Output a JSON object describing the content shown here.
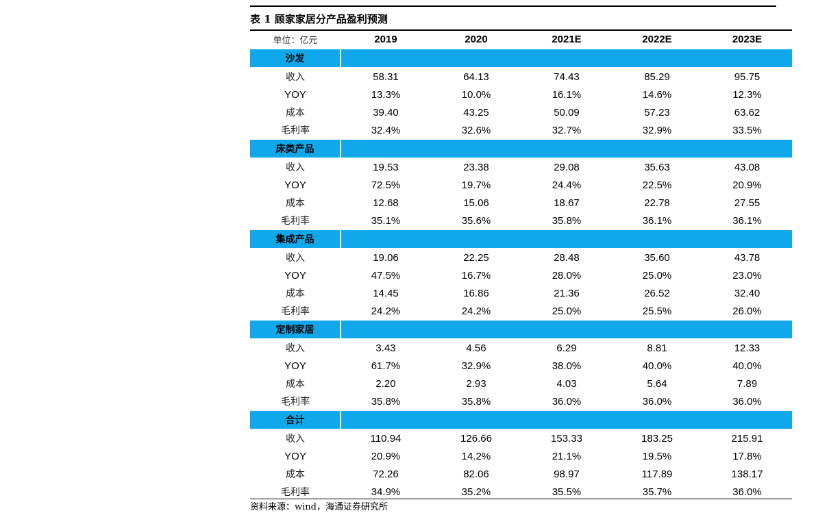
{
  "title": "表 1 顾家家居分产品盈利预测",
  "unit_label": "单位：亿元",
  "years": [
    "2019",
    "2020",
    "2021E",
    "2022E",
    "2023E"
  ],
  "sections": [
    {
      "name": "沙发",
      "rows": [
        {
          "label": "收入",
          "values": [
            "58.31",
            "64.13",
            "74.43",
            "85.29",
            "95.75"
          ]
        },
        {
          "label": "YOY",
          "values": [
            "13.3%",
            "10.0%",
            "16.1%",
            "14.6%",
            "12.3%"
          ]
        },
        {
          "label": "成本",
          "values": [
            "39.40",
            "43.25",
            "50.09",
            "57.23",
            "63.62"
          ]
        },
        {
          "label": "毛利率",
          "values": [
            "32.4%",
            "32.6%",
            "32.7%",
            "32.9%",
            "33.5%"
          ]
        }
      ]
    },
    {
      "name": "床类产品",
      "rows": [
        {
          "label": "收入",
          "values": [
            "19.53",
            "23.38",
            "29.08",
            "35.63",
            "43.08"
          ]
        },
        {
          "label": "YOY",
          "values": [
            "72.5%",
            "19.7%",
            "24.4%",
            "22.5%",
            "20.9%"
          ]
        },
        {
          "label": "成本",
          "values": [
            "12.68",
            "15.06",
            "18.67",
            "22.78",
            "27.55"
          ]
        },
        {
          "label": "毛利率",
          "values": [
            "35.1%",
            "35.6%",
            "35.8%",
            "36.1%",
            "36.1%"
          ]
        }
      ]
    },
    {
      "name": "集成产品",
      "rows": [
        {
          "label": "收入",
          "values": [
            "19.06",
            "22.25",
            "28.48",
            "35.60",
            "43.78"
          ]
        },
        {
          "label": "YOY",
          "values": [
            "47.5%",
            "16.7%",
            "28.0%",
            "25.0%",
            "23.0%"
          ]
        },
        {
          "label": "成本",
          "values": [
            "14.45",
            "16.86",
            "21.36",
            "26.52",
            "32.40"
          ]
        },
        {
          "label": "毛利率",
          "values": [
            "24.2%",
            "24.2%",
            "25.0%",
            "25.5%",
            "26.0%"
          ]
        }
      ]
    },
    {
      "name": "定制家居",
      "rows": [
        {
          "label": "收入",
          "values": [
            "3.43",
            "4.56",
            "6.29",
            "8.81",
            "12.33"
          ]
        },
        {
          "label": "YOY",
          "values": [
            "61.7%",
            "32.9%",
            "38.0%",
            "40.0%",
            "40.0%"
          ]
        },
        {
          "label": "成本",
          "values": [
            "2.20",
            "2.93",
            "4.03",
            "5.64",
            "7.89"
          ]
        },
        {
          "label": "毛利率",
          "values": [
            "35.8%",
            "35.8%",
            "36.0%",
            "36.0%",
            "36.0%"
          ]
        }
      ]
    },
    {
      "name": "合计",
      "rows": [
        {
          "label": "收入",
          "values": [
            "110.94",
            "126.66",
            "153.33",
            "183.25",
            "215.91"
          ]
        },
        {
          "label": "YOY",
          "values": [
            "20.9%",
            "14.2%",
            "21.1%",
            "19.5%",
            "17.8%"
          ]
        },
        {
          "label": "成本",
          "values": [
            "72.26",
            "82.06",
            "98.97",
            "117.89",
            "138.17"
          ]
        },
        {
          "label": "毛利率",
          "values": [
            "34.9%",
            "35.2%",
            "35.5%",
            "35.7%",
            "36.0%"
          ]
        }
      ]
    }
  ],
  "source": "资料来源：wind，海通证券研究所",
  "colors": {
    "section_band": "#10a8ea",
    "rule": "#000000"
  }
}
